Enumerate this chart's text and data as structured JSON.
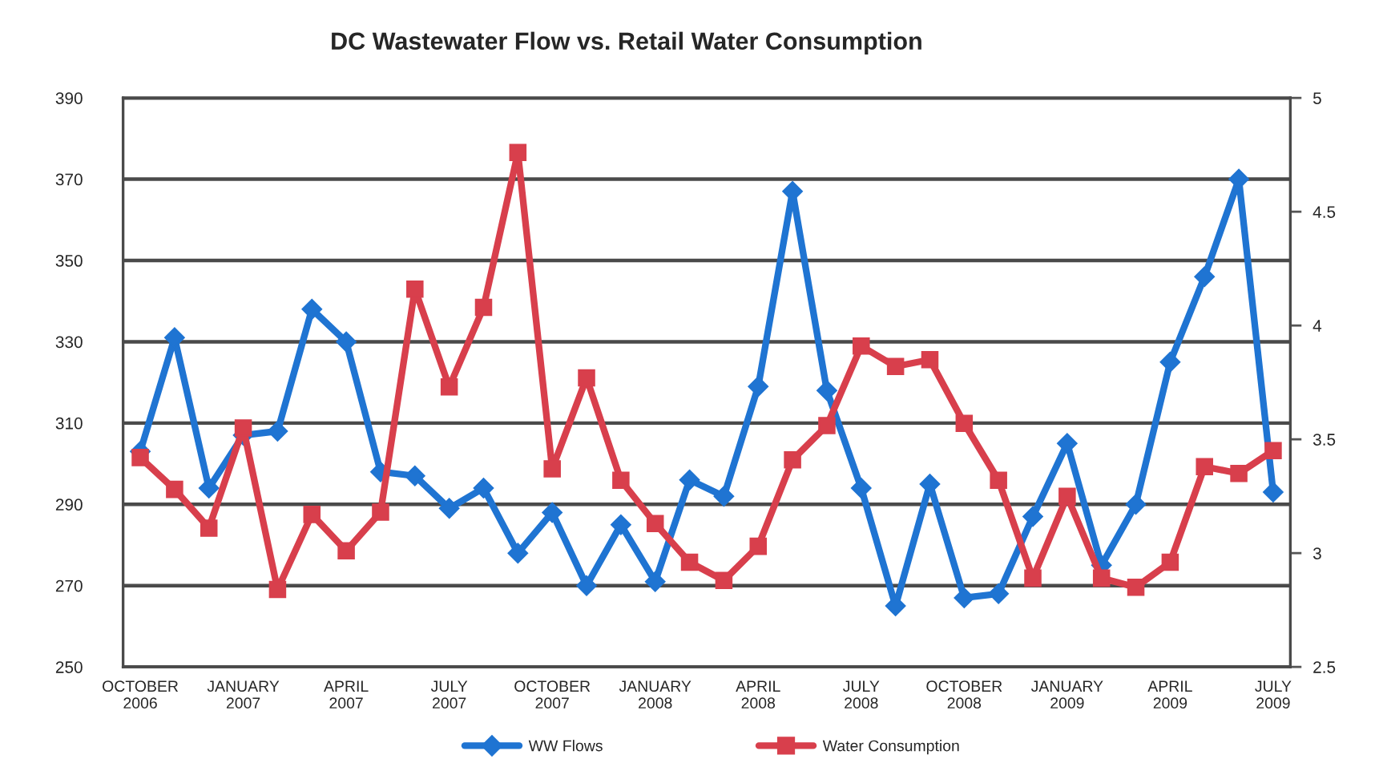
{
  "chart_data": {
    "type": "line",
    "title": "DC Wastewater Flow vs. Retail Water Consumption",
    "categories": [
      "OCTOBER\n2006",
      null,
      null,
      "JANUARY\n2007",
      null,
      null,
      "APRIL\n2007",
      null,
      null,
      "JULY\n2007",
      null,
      null,
      "OCTOBER\n2007",
      null,
      null,
      "JANUARY\n2008",
      null,
      null,
      "APRIL\n2008",
      null,
      null,
      "JULY\n2008",
      null,
      null,
      "OCTOBER\n2008",
      null,
      null,
      "JANUARY\n2009",
      null,
      null,
      "APRIL\n2009",
      null,
      null,
      "JULY\n2009"
    ],
    "series": [
      {
        "name": "WW Flows",
        "color": "#1f74d2",
        "marker": "diamond",
        "values": [
          303,
          331,
          294,
          307,
          308,
          338,
          330,
          298,
          297,
          289,
          294,
          278,
          288,
          270,
          285,
          271,
          296,
          292,
          319,
          367,
          318,
          294,
          265,
          295,
          267,
          268,
          287,
          305,
          275,
          290,
          325,
          346,
          370,
          293
        ]
      },
      {
        "name": "Water Consumption",
        "color": "#d83f4c",
        "marker": "square",
        "axis": "y2",
        "values": [
          3.42,
          3.28,
          3.11,
          3.55,
          2.84,
          3.17,
          3.01,
          3.18,
          4.16,
          3.73,
          4.08,
          4.76,
          3.37,
          3.77,
          3.32,
          3.13,
          2.96,
          2.88,
          3.03,
          3.41,
          3.56,
          3.91,
          3.82,
          3.85,
          3.57,
          3.32,
          2.89,
          3.25,
          2.89,
          2.85,
          2.96,
          3.38,
          3.35,
          3.45
        ]
      }
    ],
    "ylim": [
      250,
      390
    ],
    "yticks": [
      250,
      270,
      290,
      310,
      330,
      350,
      370,
      390
    ],
    "y2lim": [
      2.5,
      5
    ],
    "y2ticks": [
      2.5,
      3,
      3.5,
      4,
      4.5,
      5
    ],
    "grid": "y",
    "legend": "bottom",
    "line_style": "solid"
  }
}
